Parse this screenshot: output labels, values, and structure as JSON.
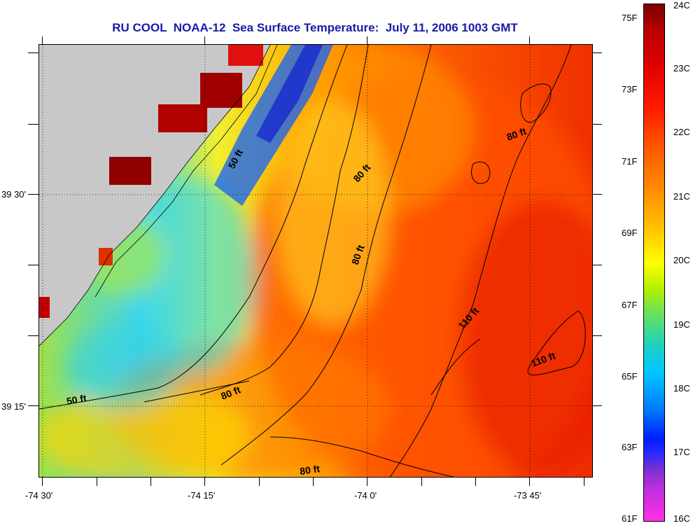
{
  "title": "RU COOL  NOAA-12  Sea Surface Temperature:  July 11, 2006 1003 GMT",
  "x_axis_labels": [
    "-74 30'",
    "-74 15'",
    "-74 0'",
    "-73 45'"
  ],
  "y_axis_labels": [
    "39 30'",
    "39 15'"
  ],
  "contour_labels": [
    "50 ft",
    "80 ft",
    "80 ft",
    "80 ft",
    "110 ft",
    "110 ft",
    "50 ft",
    "80 ft",
    "80 ft"
  ],
  "colorbar": {
    "fahrenheit": [
      "75F",
      "73F",
      "71F",
      "69F",
      "67F",
      "65F",
      "63F",
      "61F"
    ],
    "celsius": [
      "24C",
      "23C",
      "22C",
      "21C",
      "20C",
      "19C",
      "18C",
      "17C",
      "16C"
    ]
  },
  "colors": {
    "land": "#c8c8c8",
    "title": "#1a1aa8"
  }
}
